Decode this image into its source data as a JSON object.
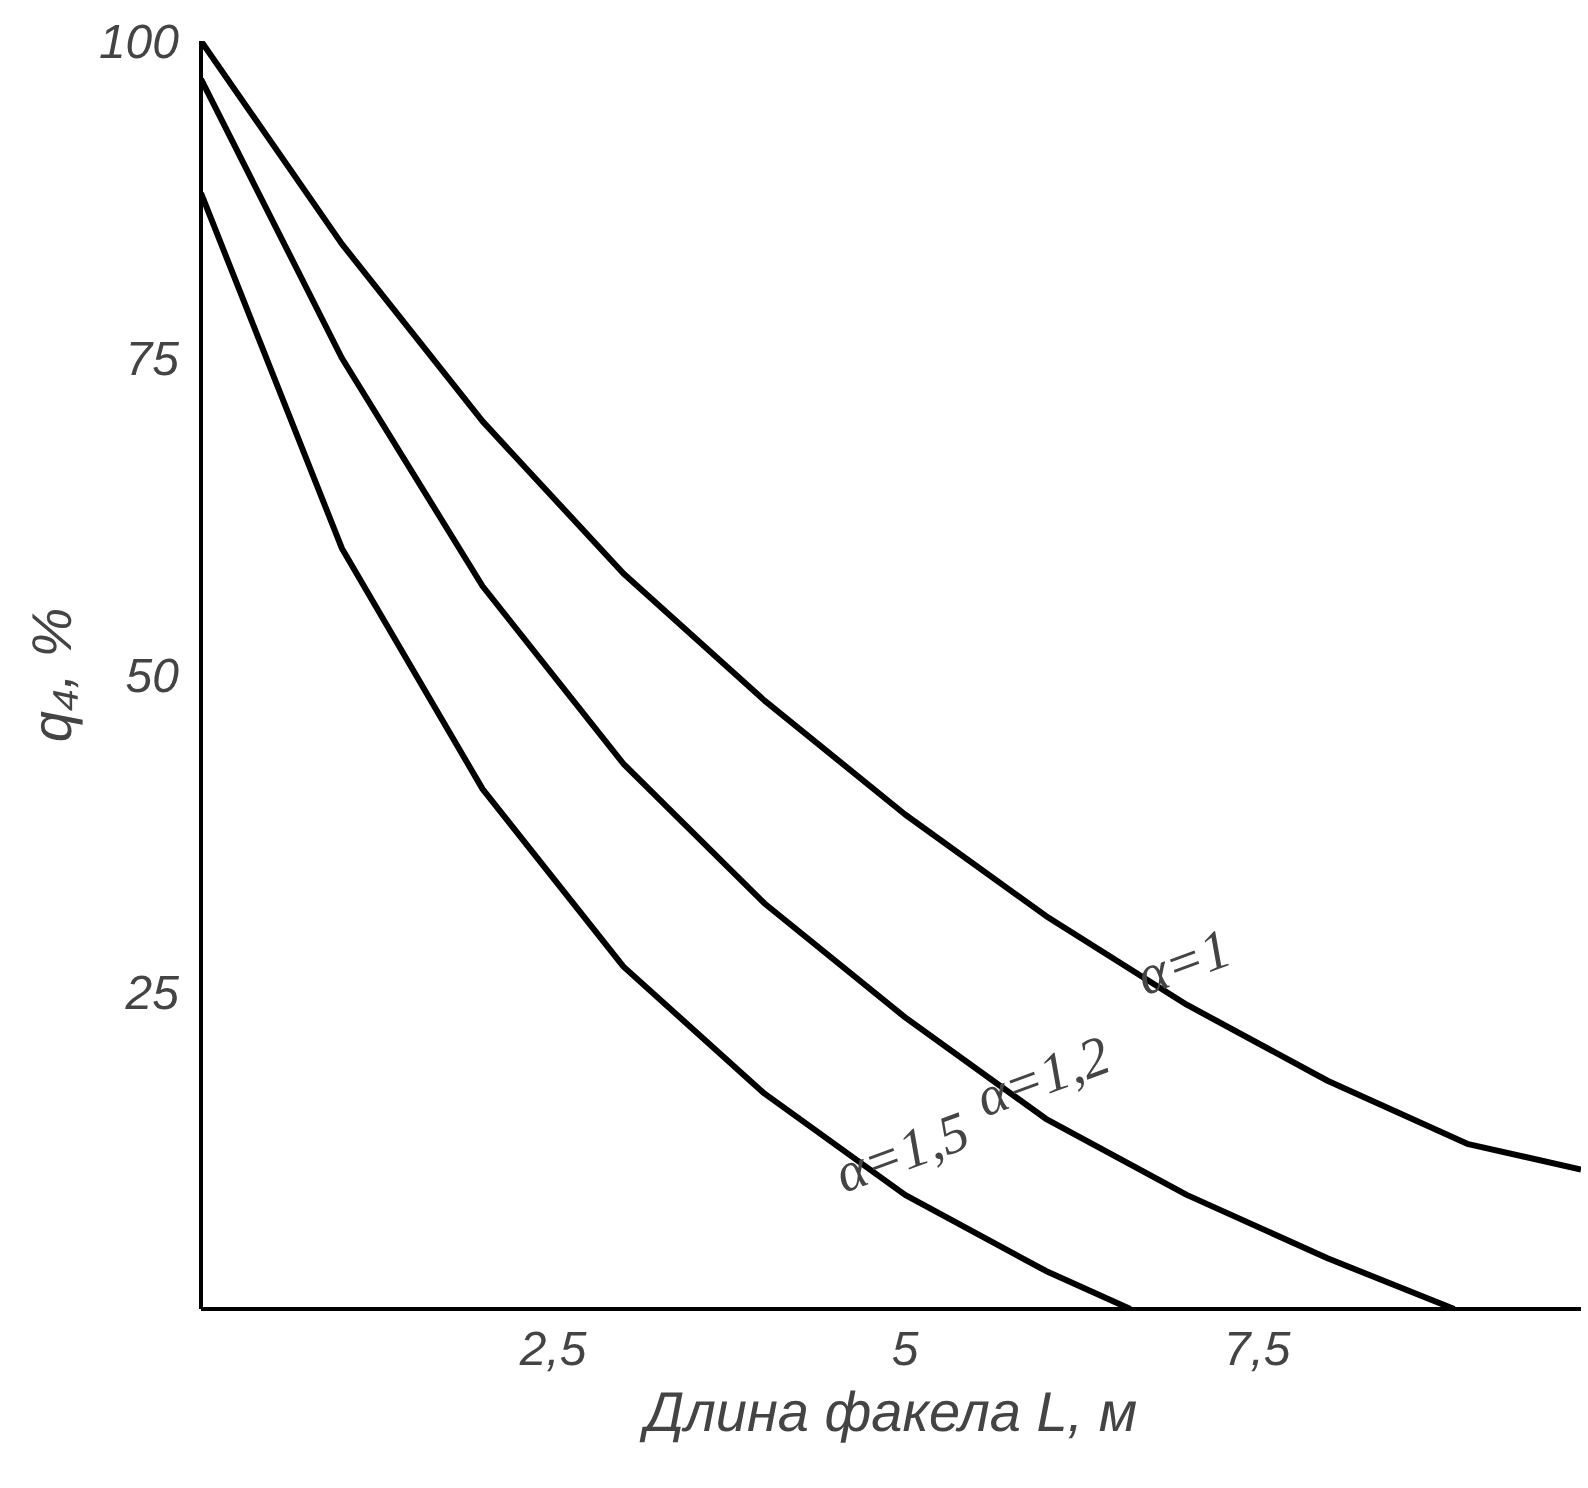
{
  "chart_data": {
    "type": "line",
    "xlabel": "Длина факела L, м",
    "ylabel": "q₄, %",
    "xlim": [
      0,
      9.8
    ],
    "ylim": [
      0,
      100
    ],
    "xticks": [
      {
        "value": 2.5,
        "label": "2,5"
      },
      5,
      {
        "value": 7.5,
        "label": "7,5"
      }
    ],
    "yticks": [
      25,
      50,
      75,
      100
    ],
    "grid": false,
    "legend": false,
    "marker": "none",
    "line_style": "solid",
    "series": [
      {
        "name": "α=1",
        "color": "#000000",
        "x": [
          0,
          1,
          2,
          3,
          4,
          5,
          6,
          7,
          8,
          9,
          9.8
        ],
        "values": [
          100,
          84,
          70,
          58,
          48,
          39,
          31,
          24,
          18,
          13,
          11
        ]
      },
      {
        "name": "α=1,2",
        "color": "#000000",
        "x": [
          0,
          1,
          2,
          3,
          4,
          5,
          6,
          7,
          8,
          8.9
        ],
        "values": [
          97,
          75,
          57,
          43,
          32,
          23,
          15,
          9,
          4,
          0
        ]
      },
      {
        "name": "α=1,5",
        "color": "#000000",
        "x": [
          0,
          1,
          2,
          3,
          4,
          5,
          6,
          6.6
        ],
        "values": [
          88,
          60,
          41,
          27,
          17,
          9,
          3,
          0
        ]
      }
    ]
  }
}
